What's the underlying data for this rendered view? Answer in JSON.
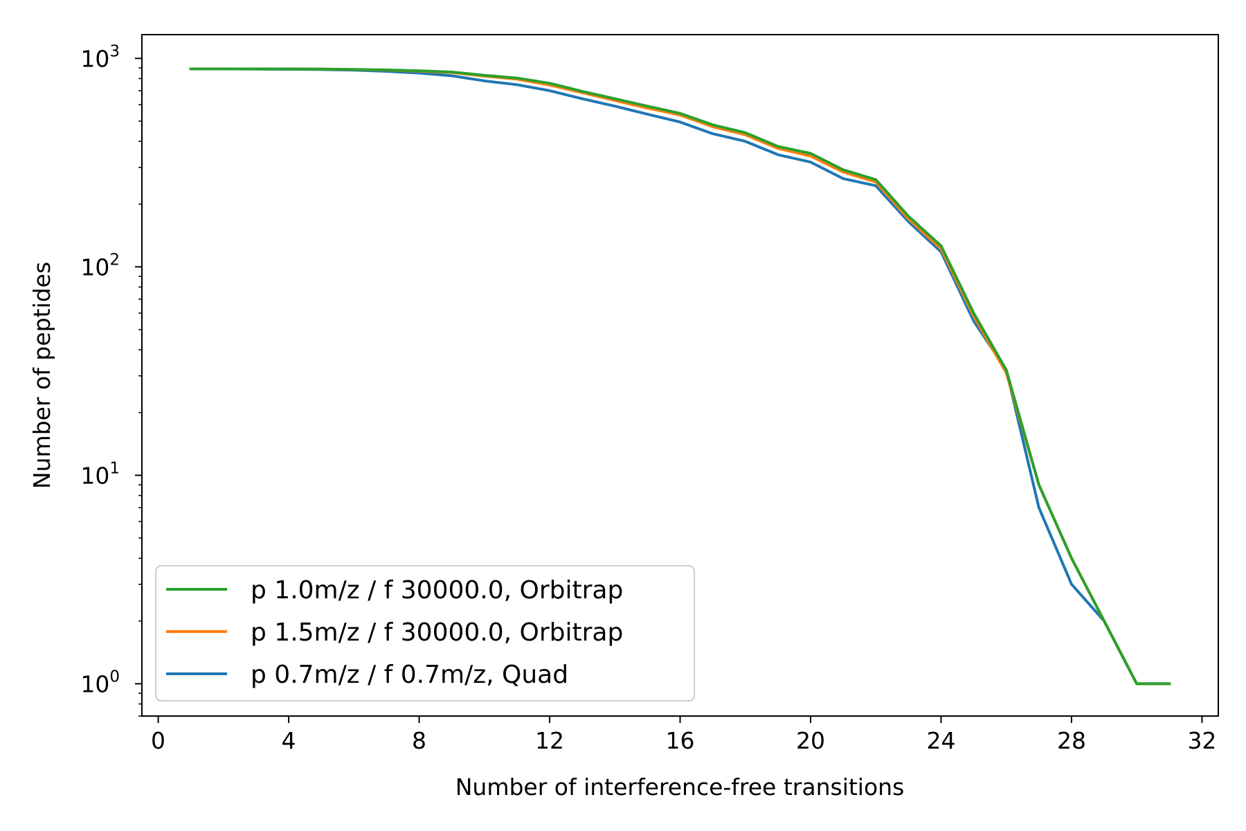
{
  "chart_data": {
    "type": "line",
    "xlabel": "Number of interference-free transitions",
    "ylabel": "Number of peptides",
    "xlim": [
      -0.5,
      32.5
    ],
    "ylim": [
      0.7,
      1300
    ],
    "yscale": "log",
    "grid": false,
    "legend_position": "lower-left",
    "xticks": [
      0,
      4,
      8,
      12,
      16,
      20,
      24,
      28,
      32
    ],
    "xtick_labels": [
      "0",
      "4",
      "8",
      "12",
      "16",
      "20",
      "24",
      "28",
      "32"
    ],
    "yticks": [
      1,
      10,
      100,
      1000
    ],
    "ytick_labels": [
      {
        "base": "10",
        "exp": "0"
      },
      {
        "base": "10",
        "exp": "1"
      },
      {
        "base": "10",
        "exp": "2"
      },
      {
        "base": "10",
        "exp": "3"
      }
    ],
    "series": [
      {
        "name": "p 0.7m/z / f 0.7m/z, Quad",
        "color": "#1f77b4",
        "x": [
          1,
          2,
          3,
          4,
          5,
          6,
          7,
          8,
          9,
          10,
          11,
          12,
          13,
          14,
          15,
          16,
          17,
          18,
          19,
          20,
          21,
          22,
          23,
          24,
          25,
          26,
          27,
          28,
          29,
          30,
          31
        ],
        "y": [
          890,
          890,
          888,
          887,
          884,
          878,
          867,
          850,
          825,
          780,
          748,
          700,
          640,
          590,
          540,
          495,
          435,
          400,
          345,
          318,
          265,
          245,
          165,
          118,
          55,
          32,
          7,
          3,
          2,
          1,
          1
        ]
      },
      {
        "name": "p 1.5m/z / f 30000.0, Orbitrap",
        "color": "#ff7f0e",
        "x": [
          1,
          2,
          3,
          4,
          5,
          6,
          7,
          8,
          9,
          10,
          11,
          12,
          13,
          14,
          15,
          16,
          17,
          18,
          19,
          20,
          21,
          22,
          23,
          24,
          25,
          26,
          27,
          28,
          29,
          30,
          31
        ],
        "y": [
          890,
          890,
          890,
          890,
          888,
          884,
          878,
          868,
          855,
          822,
          795,
          745,
          685,
          628,
          578,
          535,
          470,
          430,
          370,
          340,
          285,
          255,
          170,
          122,
          58,
          31,
          9,
          4,
          2,
          1,
          1
        ]
      },
      {
        "name": "p 1.0m/z / f 30000.0, Orbitrap",
        "color": "#2ca02c",
        "x": [
          1,
          2,
          3,
          4,
          5,
          6,
          7,
          8,
          9,
          10,
          11,
          12,
          13,
          14,
          15,
          16,
          17,
          18,
          19,
          20,
          21,
          22,
          23,
          24,
          25,
          26,
          27,
          28,
          29,
          30,
          31
        ],
        "y": [
          890,
          890,
          890,
          890,
          888,
          885,
          880,
          872,
          860,
          830,
          805,
          760,
          695,
          640,
          590,
          545,
          480,
          440,
          378,
          350,
          292,
          262,
          175,
          126,
          60,
          32,
          9,
          4,
          2,
          1,
          1
        ]
      }
    ],
    "legend_order": [
      2,
      1,
      0
    ]
  }
}
